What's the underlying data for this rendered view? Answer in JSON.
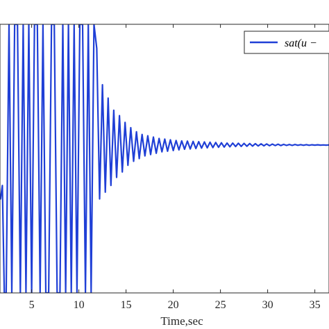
{
  "chart_data": {
    "type": "line",
    "xlabel": "Time,sec",
    "xlim": [
      1.5,
      36.5
    ],
    "ylim": [
      -1,
      1
    ],
    "xticks": [
      5,
      10,
      15,
      20,
      25,
      30,
      35
    ],
    "xtick_labels": [
      "5",
      "10",
      "15",
      "20",
      "25",
      "30",
      "35"
    ],
    "grid": false,
    "legend": {
      "position": "top-right",
      "entries": [
        "sat(u −"
      ]
    },
    "series": [
      {
        "color": "#1f3fd6",
        "x": [
          1.5,
          1.7,
          1.9,
          2.1,
          2.3,
          2.6,
          2.9,
          3.2,
          3.5,
          3.8,
          4.1,
          4.4,
          4.7,
          5.0,
          5.3,
          5.6,
          5.9,
          6.2,
          6.5,
          6.8,
          7.1,
          7.4,
          7.7,
          8.0,
          8.3,
          8.6,
          8.9,
          9.2,
          9.5,
          9.8,
          10.1,
          10.4,
          10.7,
          11.0,
          11.3,
          11.6,
          11.9,
          12.2,
          12.5,
          12.8,
          13.1,
          13.4,
          13.7,
          14.0,
          14.3,
          14.6,
          14.9,
          15.2,
          15.5,
          15.8,
          16.1,
          16.4,
          16.7,
          17.0,
          17.3,
          17.6,
          17.9,
          18.2,
          18.5,
          18.8,
          19.1,
          19.4,
          19.7,
          20.0,
          20.3,
          20.6,
          20.9,
          21.2,
          21.5,
          21.8,
          22.1,
          22.4,
          22.7,
          23.0,
          23.3,
          23.6,
          23.9,
          24.2,
          24.5,
          24.8,
          25.1,
          25.4,
          25.7,
          26.0,
          26.3,
          26.6,
          26.9,
          27.2,
          27.5,
          27.8,
          28.1,
          28.4,
          28.7,
          29.0,
          29.3,
          29.6,
          29.9,
          30.2,
          30.5,
          30.8,
          31.1,
          31.4,
          31.7,
          32.0,
          32.3,
          32.6,
          32.9,
          33.2,
          33.5,
          33.8,
          34.1,
          34.4,
          34.7,
          35.0,
          35.3,
          35.6,
          35.9,
          36.2,
          36.5
        ],
        "y": [
          -0.25,
          -0.3,
          -0.2,
          -1,
          -1,
          1,
          -1,
          1,
          1,
          -1,
          1,
          -1,
          1,
          -1,
          1,
          1,
          -1,
          1,
          -1,
          -1,
          1,
          1,
          -1,
          -1,
          1,
          -1,
          1,
          -1,
          1,
          -1,
          1,
          1,
          -1,
          1,
          -1,
          1,
          0.82,
          -0.3,
          0.55,
          -0.25,
          0.45,
          -0.2,
          0.36,
          -0.14,
          0.32,
          -0.1,
          0.27,
          -0.05,
          0.23,
          -0.02,
          0.2,
          0.0,
          0.18,
          0.02,
          0.17,
          0.03,
          0.16,
          0.04,
          0.15,
          0.05,
          0.145,
          0.055,
          0.14,
          0.06,
          0.135,
          0.065,
          0.132,
          0.07,
          0.13,
          0.072,
          0.128,
          0.075,
          0.126,
          0.078,
          0.124,
          0.08,
          0.122,
          0.082,
          0.12,
          0.084,
          0.118,
          0.086,
          0.116,
          0.088,
          0.115,
          0.09,
          0.114,
          0.091,
          0.113,
          0.092,
          0.112,
          0.093,
          0.111,
          0.094,
          0.11,
          0.095,
          0.109,
          0.096,
          0.108,
          0.097,
          0.107,
          0.097,
          0.106,
          0.098,
          0.105,
          0.098,
          0.105,
          0.099,
          0.104,
          0.099,
          0.104,
          0.099,
          0.103,
          0.1,
          0.103,
          0.1,
          0.102,
          0.1,
          0.102
        ]
      }
    ]
  }
}
